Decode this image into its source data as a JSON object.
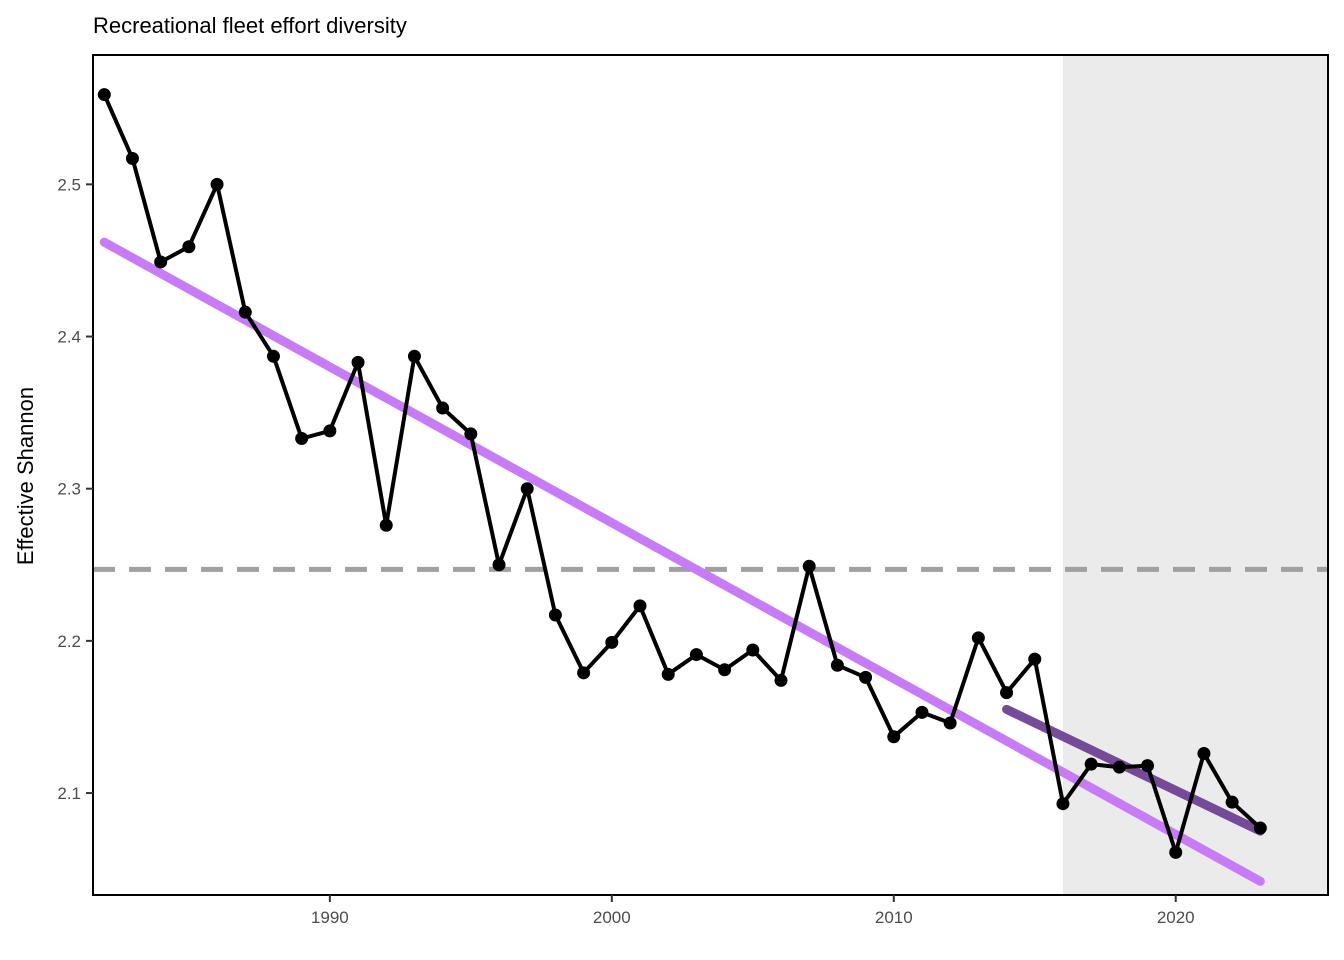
{
  "chart_data": {
    "type": "line",
    "title": "Recreational fleet effort diversity",
    "xlabel": "",
    "ylabel": "Effective Shannon",
    "xlim": [
      1981.6,
      2025.4
    ],
    "ylim": [
      2.033,
      2.585
    ],
    "x_ticks": [
      1990,
      2000,
      2010,
      2020
    ],
    "y_ticks": [
      2.1,
      2.2,
      2.3,
      2.4,
      2.5
    ],
    "x_tick_labels": [
      "1990",
      "2000",
      "2010",
      "2020"
    ],
    "y_tick_labels": [
      "2.1",
      "2.2",
      "2.3",
      "2.4",
      "2.5"
    ],
    "grid": false,
    "shaded_region": {
      "x_start": 2016,
      "x_end": 2025.4,
      "color": "#ebebeb"
    },
    "reference_line": {
      "y": 2.247,
      "style": "dashed",
      "color": "#a0a0a0"
    },
    "series": [
      {
        "type": "line-with-points",
        "color": "#000000",
        "x": [
          1982,
          1983,
          1984,
          1985,
          1986,
          1987,
          1988,
          1989,
          1990,
          1991,
          1992,
          1993,
          1994,
          1995,
          1996,
          1997,
          1998,
          1999,
          2000,
          2001,
          2002,
          2003,
          2004,
          2005,
          2006,
          2007,
          2008,
          2009,
          2010,
          2011,
          2012,
          2013,
          2014,
          2015,
          2016,
          2017,
          2018,
          2019,
          2020,
          2021,
          2022,
          2023
        ],
        "y": [
          2.559,
          2.517,
          2.449,
          2.459,
          2.5,
          2.416,
          2.387,
          2.333,
          2.338,
          2.383,
          2.276,
          2.387,
          2.353,
          2.336,
          2.25,
          2.3,
          2.217,
          2.179,
          2.199,
          2.223,
          2.178,
          2.191,
          2.181,
          2.194,
          2.174,
          2.249,
          2.184,
          2.176,
          2.137,
          2.153,
          2.146,
          2.202,
          2.166,
          2.188,
          2.093,
          2.119,
          2.117,
          2.118,
          2.061,
          2.126,
          2.094,
          2.077
        ]
      },
      {
        "type": "trend",
        "color": "#c77cf5",
        "x": [
          1982,
          2023
        ],
        "y": [
          2.462,
          2.042
        ]
      },
      {
        "type": "trend",
        "color": "#6a3d91",
        "x": [
          2014,
          2023
        ],
        "y": [
          2.155,
          2.075
        ]
      }
    ]
  }
}
